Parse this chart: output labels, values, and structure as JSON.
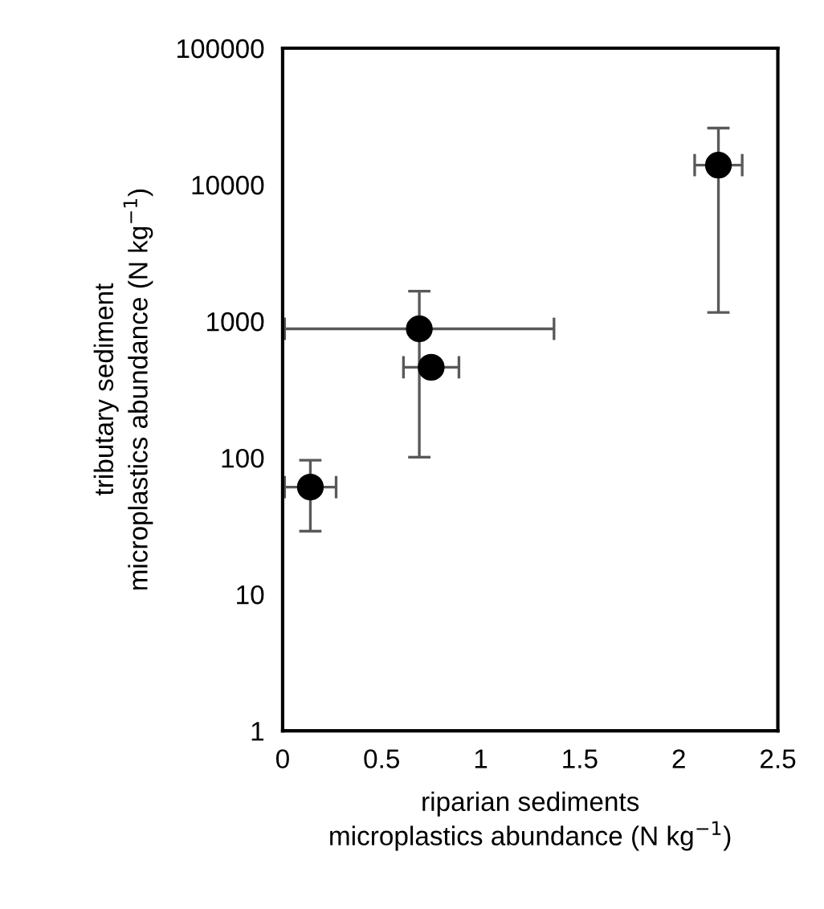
{
  "chart_data": {
    "type": "scatter",
    "xlabel": "riparian sediments\nmicroplastics abundance (N kg$^{−1}$)",
    "ylabel": "tributary sediment\nmicroplastics abundance (N kg$^{−1}$)",
    "x": [
      0.14,
      0.69,
      0.75,
      2.2
    ],
    "series": [
      {
        "color": "#000000",
        "values": [
          61,
          880,
          460,
          13900
        ],
        "errors": [
          [
            29,
            96
          ],
          [
            101,
            1660
          ],
          null,
          [
            1160,
            26000
          ]
        ],
        "xerrors": [
          0.13,
          0.68,
          0.14,
          0.12
        ]
      }
    ],
    "marker": "circle",
    "log": "y",
    "grid": false,
    "legend": false,
    "xlim": [
      0,
      2.5
    ],
    "xticks": [
      0,
      0.5,
      1,
      1.5,
      2,
      2.5
    ],
    "ylim": [
      1,
      100000
    ],
    "yticks": [
      1,
      10,
      100,
      1000,
      10000,
      100000
    ]
  }
}
